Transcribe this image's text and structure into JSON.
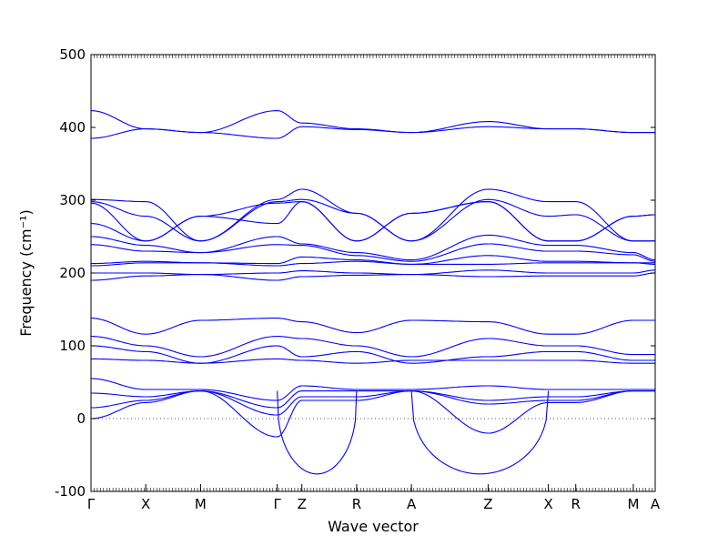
{
  "chart_data": {
    "type": "line",
    "title": "",
    "xlabel": "Wave vector",
    "ylabel": "Frequency (cm⁻¹)",
    "ylim": [
      -100,
      500
    ],
    "yticks": [
      -100,
      0,
      100,
      200,
      300,
      400,
      500
    ],
    "xlim": [
      0,
      10.3
    ],
    "x_ticks": [
      {
        "label": "Γ",
        "x": 0.0
      },
      {
        "label": "X",
        "x": 1.0
      },
      {
        "label": "M",
        "x": 2.0
      },
      {
        "label": "Γ",
        "x": 3.4
      },
      {
        "label": "Z",
        "x": 3.85
      },
      {
        "label": "R",
        "x": 4.85
      },
      {
        "label": "A",
        "x": 5.85
      },
      {
        "label": "Z",
        "x": 7.25
      },
      {
        "label": "X",
        "x": 8.35
      },
      {
        "label": "R",
        "x": 8.85
      },
      {
        "label": "M",
        "x": 9.9
      },
      {
        "label": "A",
        "x": 10.3
      }
    ],
    "zero_line": 0,
    "line_color": "#0000ff",
    "grid": false,
    "x": [
      0,
      1.0,
      2.0,
      3.4,
      3.85,
      4.85,
      5.85,
      7.25,
      8.35,
      8.85,
      9.9,
      10.3
    ],
    "series": [
      {
        "values": [
          423,
          398,
          393,
          423,
          406,
          398,
          393,
          408,
          398,
          398,
          393,
          393
        ]
      },
      {
        "values": [
          385,
          398,
          393,
          385,
          401,
          397,
          393,
          401,
          398,
          398,
          393,
          393
        ]
      },
      {
        "values": [
          301,
          298,
          244,
          301,
          315,
          282,
          244,
          315,
          298,
          298,
          244,
          244
        ]
      },
      {
        "values": [
          298,
          278,
          244,
          298,
          301,
          282,
          244,
          301,
          278,
          280,
          244,
          244
        ]
      },
      {
        "values": [
          296,
          244,
          278,
          296,
          298,
          244,
          282,
          298,
          244,
          244,
          278,
          280
        ]
      },
      {
        "values": [
          268,
          244,
          278,
          268,
          298,
          244,
          282,
          298,
          244,
          244,
          278,
          280
        ]
      },
      {
        "values": [
          250,
          238,
          228,
          250,
          240,
          228,
          218,
          252,
          238,
          238,
          228,
          218
        ]
      },
      {
        "values": [
          239,
          230,
          228,
          239,
          238,
          224,
          216,
          240,
          230,
          230,
          225,
          216
        ]
      },
      {
        "values": [
          213,
          216,
          214,
          213,
          222,
          218,
          212,
          224,
          216,
          216,
          214,
          214
        ]
      },
      {
        "values": [
          210,
          214,
          214,
          210,
          213,
          216,
          212,
          212,
          214,
          214,
          214,
          212
        ]
      },
      {
        "values": [
          200,
          200,
          198,
          200,
          203,
          200,
          198,
          204,
          200,
          200,
          200,
          204
        ]
      },
      {
        "values": [
          190,
          196,
          198,
          190,
          195,
          197,
          198,
          195,
          196,
          196,
          196,
          200
        ]
      },
      {
        "values": [
          138,
          116,
          135,
          138,
          133,
          118,
          135,
          133,
          116,
          116,
          135,
          135
        ]
      },
      {
        "values": [
          113,
          100,
          85,
          113,
          110,
          100,
          85,
          110,
          100,
          100,
          88,
          88
        ]
      },
      {
        "values": [
          100,
          92,
          76,
          100,
          85,
          92,
          76,
          85,
          92,
          92,
          80,
          80
        ]
      },
      {
        "values": [
          82,
          80,
          76,
          82,
          80,
          76,
          80,
          80,
          80,
          80,
          76,
          76
        ]
      },
      {
        "values": [
          55,
          40,
          40,
          25,
          45,
          40,
          40,
          45,
          40,
          40,
          40,
          40
        ]
      },
      {
        "values": [
          35,
          30,
          38,
          15,
          38,
          38,
          38,
          25,
          30,
          30,
          38,
          38
        ]
      },
      {
        "values": [
          15,
          25,
          38,
          5,
          30,
          30,
          38,
          20,
          25,
          25,
          38,
          38
        ]
      },
      {
        "values": [
          0,
          22,
          38,
          -25,
          25,
          25,
          38,
          -20,
          22,
          22,
          38,
          38
        ]
      }
    ],
    "dips": [
      {
        "x_from": 3.4,
        "x_to": 4.85,
        "min": -76
      },
      {
        "x_from": 5.85,
        "x_to": 8.35,
        "min": -76
      }
    ]
  }
}
